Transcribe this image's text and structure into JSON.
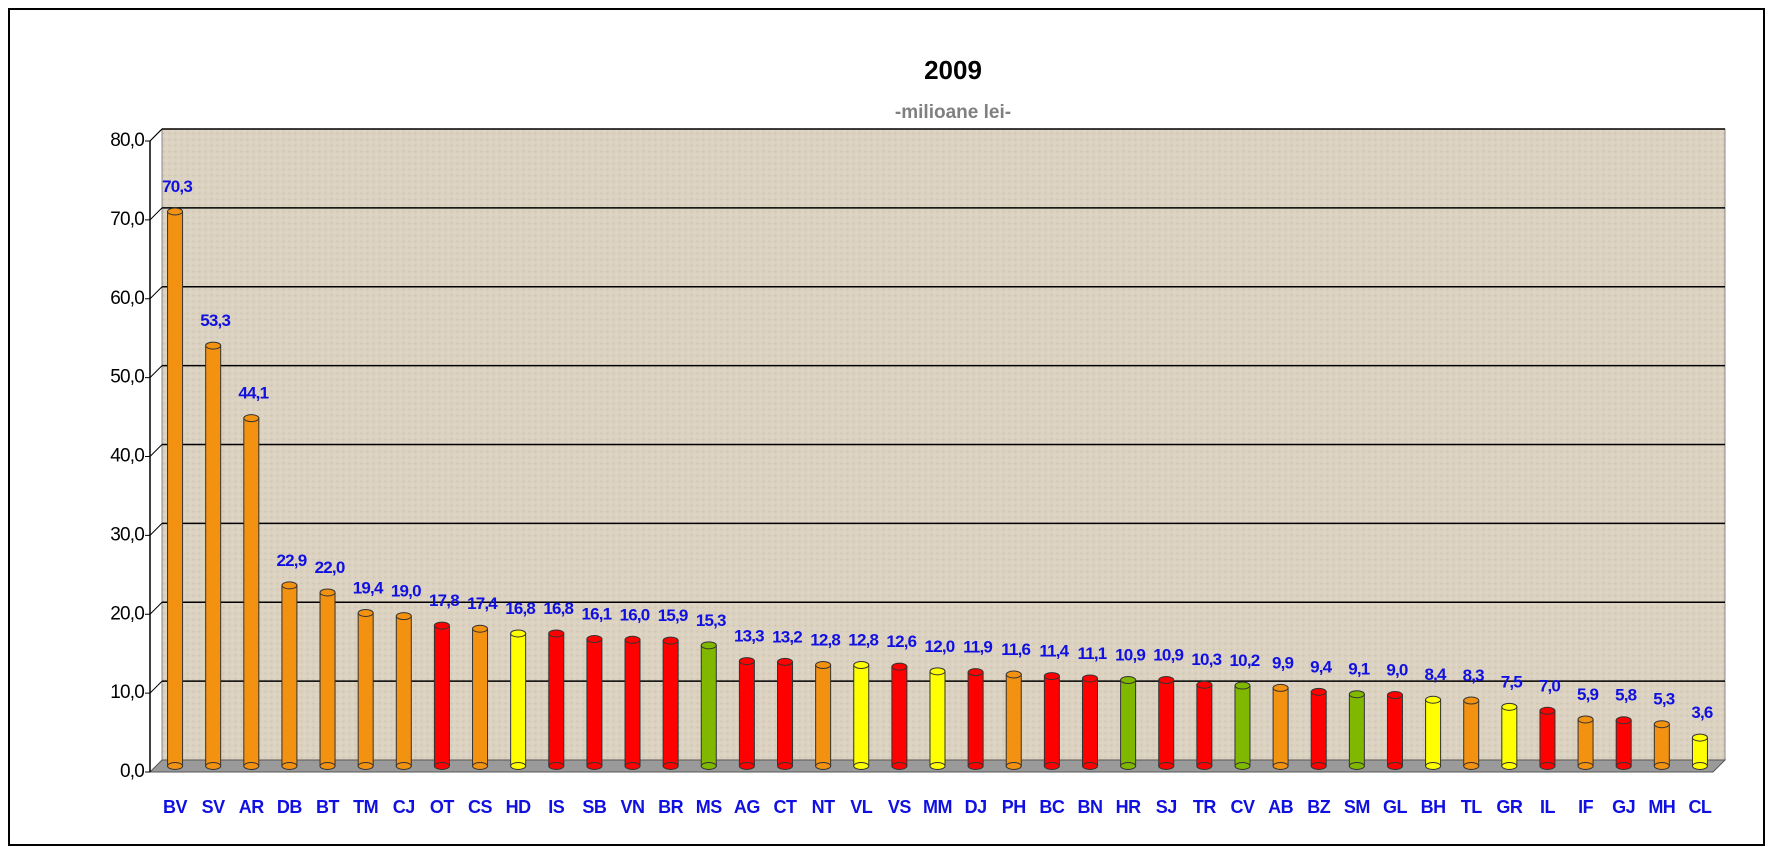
{
  "chart_data": {
    "type": "bar",
    "title": "2009",
    "subtitle": "-milioane lei-",
    "categories": [
      "BV",
      "SV",
      "AR",
      "DB",
      "BT",
      "TM",
      "CJ",
      "OT",
      "CS",
      "HD",
      "IS",
      "SB",
      "VN",
      "BR",
      "MS",
      "AG",
      "CT",
      "NT",
      "VL",
      "VS",
      "MM",
      "DJ",
      "PH",
      "BC",
      "BN",
      "HR",
      "SJ",
      "TR",
      "CV",
      "AB",
      "BZ",
      "SM",
      "GL",
      "BH",
      "TL",
      "GR",
      "IL",
      "IF",
      "GJ",
      "MH",
      "CL"
    ],
    "values": [
      70.3,
      53.3,
      44.1,
      22.9,
      22.0,
      19.4,
      19.0,
      17.8,
      17.4,
      16.8,
      16.8,
      16.1,
      16.0,
      15.9,
      15.3,
      13.3,
      13.2,
      12.8,
      12.8,
      12.6,
      12.0,
      11.9,
      11.6,
      11.4,
      11.1,
      10.9,
      10.9,
      10.3,
      10.2,
      9.9,
      9.4,
      9.1,
      9.0,
      8.4,
      8.3,
      7.5,
      7.0,
      5.9,
      5.8,
      5.3,
      3.6
    ],
    "value_labels": [
      "70,3",
      "53,3",
      "44,1",
      "22,9",
      "22,0",
      "19,4",
      "19,0",
      "17,8",
      "17,4",
      "16,8",
      "16,8",
      "16,1",
      "16,0",
      "15,9",
      "15,3",
      "13,3",
      "13,2",
      "12,8",
      "12,8",
      "12,6",
      "12,0",
      "11,9",
      "11,6",
      "11,4",
      "11,1",
      "10,9",
      "10,9",
      "10,3",
      "10,2",
      "9,9",
      "9,4",
      "9,1",
      "9,0",
      "8,4",
      "8,3",
      "7,5",
      "7,0",
      "5,9",
      "5,8",
      "5,3",
      "3,6"
    ],
    "colors": [
      "#f39111",
      "#f39111",
      "#f39111",
      "#f39111",
      "#f39111",
      "#f39111",
      "#f39111",
      "#ff0000",
      "#f39111",
      "#ffff00",
      "#ff0000",
      "#ff0000",
      "#ff0000",
      "#ff0000",
      "#80b800",
      "#ff0000",
      "#ff0000",
      "#f39111",
      "#ffff00",
      "#ff0000",
      "#ffff00",
      "#ff0000",
      "#f39111",
      "#ff0000",
      "#ff0000",
      "#80b800",
      "#ff0000",
      "#ff0000",
      "#80b800",
      "#f39111",
      "#ff0000",
      "#80b800",
      "#ff0000",
      "#ffff00",
      "#f39111",
      "#ffff00",
      "#ff0000",
      "#f39111",
      "#ff0000",
      "#f39111",
      "#ffff00"
    ],
    "ylim": [
      0,
      80
    ],
    "yticks": [
      {
        "value": 0,
        "label": "0,0"
      },
      {
        "value": 10,
        "label": "10,0"
      },
      {
        "value": 20,
        "label": "20,0"
      },
      {
        "value": 30,
        "label": "30,0"
      },
      {
        "value": 40,
        "label": "40,0"
      },
      {
        "value": 50,
        "label": "50,0"
      },
      {
        "value": 60,
        "label": "60,0"
      },
      {
        "value": 70,
        "label": "70,0"
      },
      {
        "value": 80,
        "label": "80,0"
      }
    ],
    "grid": true
  }
}
